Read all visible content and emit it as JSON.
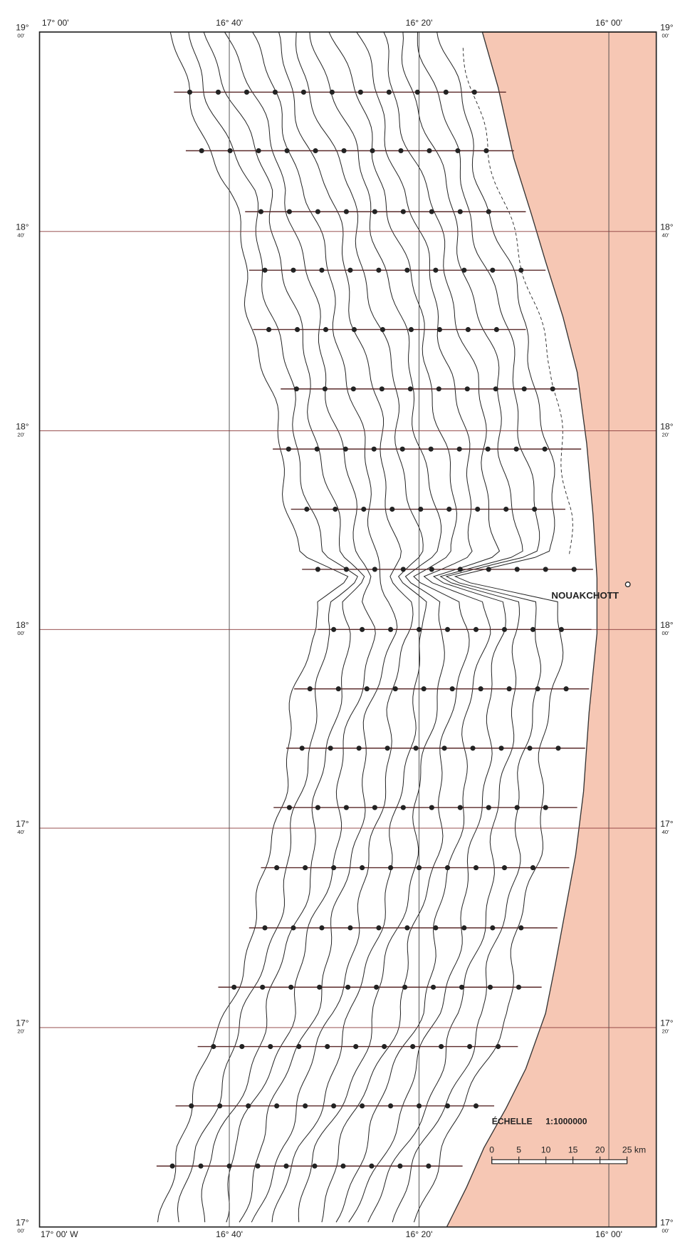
{
  "map": {
    "top_labels": [
      "17° 00'",
      "16° 40'",
      "16° 20'",
      "16° 00'"
    ],
    "bottom_labels": [
      "17° 00' W",
      "16° 40'",
      "16° 20'",
      "16° 00'"
    ],
    "lat_labels": [
      {
        "deg": "19°",
        "min": "00'"
      },
      {
        "deg": "18°",
        "min": "40'"
      },
      {
        "deg": "18°",
        "min": "20'"
      },
      {
        "deg": "18°",
        "min": "00'"
      },
      {
        "deg": "17°",
        "min": "40'"
      },
      {
        "deg": "17°",
        "min": "20'"
      },
      {
        "deg": "17°",
        "min": "00'"
      }
    ],
    "place": "NOUAKCHOTT",
    "scale": {
      "title": "ÉCHELLE",
      "ratio": "1:1000000",
      "ticks": [
        "0",
        "5",
        "10",
        "15",
        "20",
        "25 km"
      ]
    }
  }
}
